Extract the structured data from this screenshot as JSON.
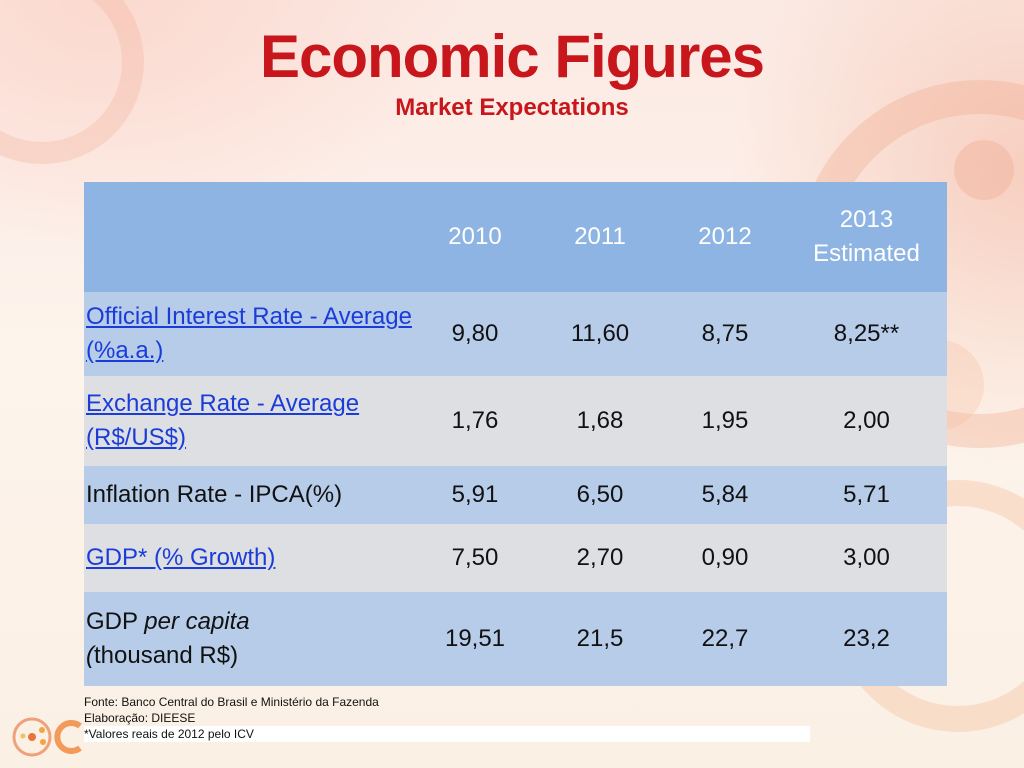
{
  "header": {
    "title": "Economic Figures",
    "subtitle": "Market Expectations"
  },
  "table": {
    "columns": [
      "",
      "2010",
      "2011",
      "2012",
      "2013 Estimated"
    ],
    "rows": [
      {
        "label": "Official Interest Rate - Average (%a.a.)",
        "linked": true,
        "values": [
          "9,80",
          "11,60",
          "8,75",
          "8,25**"
        ]
      },
      {
        "label": "Exchange Rate - Average (R$/US$)",
        "linked": true,
        "values": [
          "1,76",
          "1,68",
          "1,95",
          "2,00"
        ]
      },
      {
        "label": "Inflation Rate - IPCA(%)",
        "linked": false,
        "values": [
          "5,91",
          "6,50",
          "5,84",
          "5,71"
        ]
      },
      {
        "label": "GDP* (% Growth)",
        "linked": true,
        "values": [
          "7,50",
          "2,70",
          "0,90",
          "3,00"
        ]
      },
      {
        "label_part1": "GDP ",
        "label_part2": "per capita",
        "label_part3": "(",
        "label_part4": "thousand R$)",
        "linked": false,
        "values": [
          "19,51",
          "21,5",
          "22,7",
          "23,2"
        ]
      }
    ]
  },
  "notes": {
    "source": "Fonte: Banco Central do Brasil e Ministério da Fazenda",
    "elaboration": "Elaboração: DIEESE",
    "footnote": "*Valores reais de 2012 pelo ICV"
  },
  "colors": {
    "title": "#c8171c",
    "header_row": "#8eb4e3",
    "row_blue": "#b7cce9",
    "row_grey": "#dedfe2",
    "link": "#1a3dd9"
  }
}
